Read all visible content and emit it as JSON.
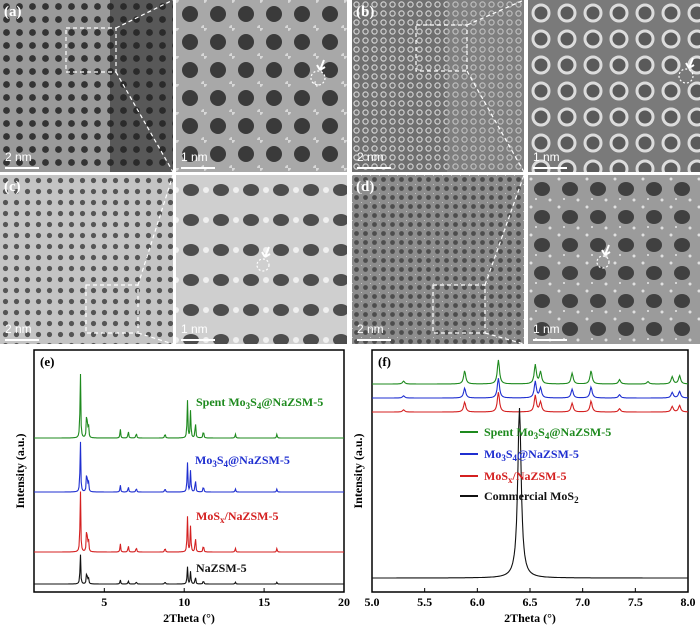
{
  "panels": {
    "a": {
      "label": "(a)",
      "scale_left": "2 nm",
      "scale_right": "1 nm"
    },
    "b": {
      "label": "(b)",
      "scale_left": "2 nm",
      "scale_right": "1 nm"
    },
    "c": {
      "label": "(c)",
      "scale_left": "2 nm",
      "scale_right": "1 nm"
    },
    "d": {
      "label": "(d)",
      "scale_left": "2 nm",
      "scale_right": "1 nm"
    }
  },
  "chart_data": [
    {
      "type": "line",
      "panel_label": "(e)",
      "xlabel": "2Theta (°)",
      "ylabel": "Intensity (a.u.)",
      "xlim": [
        0.6,
        20
      ],
      "xticks": [
        5,
        10,
        15,
        20
      ],
      "xtick_labels": [
        "5",
        "10",
        "15",
        "20"
      ],
      "series": [
        {
          "name": "Spent Mo3S4@NaZSM-5",
          "label_main": "Spent Mo",
          "sub1": "3",
          "mid": "S",
          "sub2": "4",
          "tail": "@NaZSM-5",
          "color": "#1e8a1e",
          "peaks": [
            [
              3.5,
              1.0
            ],
            [
              3.9,
              0.45
            ],
            [
              4.0,
              0.25
            ],
            [
              6.0,
              0.12
            ],
            [
              6.5,
              0.1
            ],
            [
              7.0,
              0.08
            ],
            [
              8.8,
              0.07
            ],
            [
              10.2,
              0.55
            ],
            [
              10.4,
              0.4
            ],
            [
              10.7,
              0.25
            ],
            [
              11.2,
              0.12
            ],
            [
              13.2,
              0.06
            ],
            [
              15.8,
              0.05
            ]
          ]
        },
        {
          "name": "Mo3S4@NaZSM-5",
          "label_main": "Mo",
          "sub1": "3",
          "mid": "S",
          "sub2": "4",
          "tail": "@NaZSM-5",
          "color": "#1f2fd0",
          "peaks": [
            [
              3.5,
              1.0
            ],
            [
              3.9,
              0.45
            ],
            [
              4.0,
              0.25
            ],
            [
              6.0,
              0.12
            ],
            [
              6.5,
              0.1
            ],
            [
              7.0,
              0.08
            ],
            [
              8.8,
              0.07
            ],
            [
              10.2,
              0.55
            ],
            [
              10.4,
              0.4
            ],
            [
              10.7,
              0.25
            ],
            [
              11.2,
              0.12
            ],
            [
              13.2,
              0.06
            ],
            [
              15.8,
              0.05
            ]
          ]
        },
        {
          "name": "MoSx/NaZSM-5",
          "label_main": "MoS",
          "sub1": "x",
          "mid": "",
          "sub2": "",
          "tail": "/NaZSM-5",
          "color": "#d42020",
          "peaks": [
            [
              3.5,
              1.0
            ],
            [
              3.9,
              0.45
            ],
            [
              4.0,
              0.25
            ],
            [
              6.0,
              0.12
            ],
            [
              6.5,
              0.1
            ],
            [
              7.0,
              0.08
            ],
            [
              8.8,
              0.07
            ],
            [
              10.2,
              0.55
            ],
            [
              10.4,
              0.4
            ],
            [
              10.7,
              0.25
            ],
            [
              11.2,
              0.12
            ],
            [
              13.2,
              0.06
            ],
            [
              15.8,
              0.05
            ]
          ]
        },
        {
          "name": "NaZSM-5",
          "label_main": "NaZSM-5",
          "sub1": "",
          "mid": "",
          "sub2": "",
          "tail": "",
          "color": "#111111",
          "peaks": [
            [
              3.5,
              1.0
            ],
            [
              3.9,
              0.45
            ],
            [
              4.0,
              0.25
            ],
            [
              6.0,
              0.12
            ],
            [
              6.5,
              0.1
            ],
            [
              7.0,
              0.08
            ],
            [
              8.8,
              0.07
            ],
            [
              10.2,
              0.55
            ],
            [
              10.4,
              0.4
            ],
            [
              10.7,
              0.25
            ],
            [
              11.2,
              0.12
            ],
            [
              13.2,
              0.06
            ],
            [
              15.8,
              0.05
            ]
          ]
        }
      ]
    },
    {
      "type": "line",
      "panel_label": "(f)",
      "xlabel": "2Theta (°)",
      "ylabel": "Intensity (a.u.)",
      "xlim": [
        5.0,
        8.0
      ],
      "xticks": [
        5.0,
        5.5,
        6.0,
        6.5,
        7.0,
        7.5,
        8.0
      ],
      "xtick_labels": [
        "5.0",
        "5.5",
        "6.0",
        "6.5",
        "7.0",
        "7.5",
        "8.0"
      ],
      "legend_position": "right",
      "series": [
        {
          "name": "Spent Mo3S4@NaZSM-5",
          "label_main": "Spent Mo",
          "sub1": "3",
          "mid": "S",
          "sub2": "4",
          "tail": "@NaZSM-5",
          "color": "#1e8a1e",
          "peaks": [
            [
              5.3,
              0.12
            ],
            [
              5.88,
              0.55
            ],
            [
              6.2,
              1.0
            ],
            [
              6.55,
              0.8
            ],
            [
              6.6,
              0.5
            ],
            [
              6.9,
              0.45
            ],
            [
              7.08,
              0.55
            ],
            [
              7.35,
              0.18
            ],
            [
              7.62,
              0.1
            ],
            [
              7.85,
              0.3
            ],
            [
              7.92,
              0.35
            ]
          ]
        },
        {
          "name": "Mo3S4@NaZSM-5",
          "label_main": "Mo",
          "sub1": "3",
          "mid": "S",
          "sub2": "4",
          "tail": "@NaZSM-5",
          "color": "#1f2fd0",
          "peaks": [
            [
              5.3,
              0.1
            ],
            [
              5.88,
              0.45
            ],
            [
              6.2,
              0.9
            ],
            [
              6.55,
              0.75
            ],
            [
              6.6,
              0.45
            ],
            [
              6.9,
              0.4
            ],
            [
              7.08,
              0.5
            ],
            [
              7.35,
              0.15
            ],
            [
              7.85,
              0.25
            ],
            [
              7.92,
              0.3
            ]
          ]
        },
        {
          "name": "MoSx/NaZSM-5",
          "label_main": "MoS",
          "sub1": "x",
          "mid": "",
          "sub2": "",
          "tail": "/NaZSM-5",
          "color": "#d42020",
          "peaks": [
            [
              5.3,
              0.1
            ],
            [
              5.88,
              0.45
            ],
            [
              6.2,
              0.9
            ],
            [
              6.55,
              0.75
            ],
            [
              6.6,
              0.45
            ],
            [
              6.9,
              0.4
            ],
            [
              7.08,
              0.5
            ],
            [
              7.35,
              0.15
            ],
            [
              7.85,
              0.25
            ],
            [
              7.92,
              0.3
            ]
          ]
        },
        {
          "name": "Commercial MoS2",
          "label_main": "Commercial MoS",
          "sub1": "2",
          "mid": "",
          "sub2": "",
          "tail": "",
          "color": "#111111",
          "peaks": [
            [
              6.4,
              1.0
            ]
          ]
        }
      ]
    }
  ]
}
